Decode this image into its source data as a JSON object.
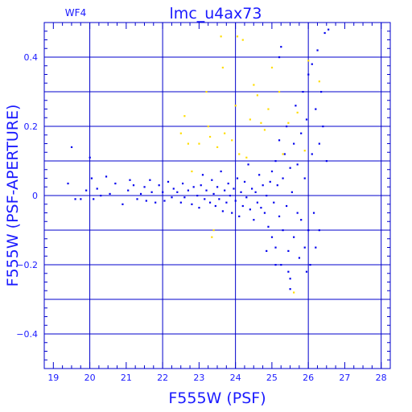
{
  "chart_data": {
    "type": "scatter",
    "title": "lmc_u4ax73",
    "subtitle": "WF4",
    "xlabel": "F555W (PSF)",
    "ylabel": "F555W (PSF-APERTURE)",
    "xlim": [
      18.75,
      28.25
    ],
    "ylim": [
      -0.5,
      0.5
    ],
    "x_ticks": [
      19,
      20,
      21,
      22,
      23,
      24,
      25,
      26,
      27,
      28
    ],
    "y_ticks": [
      -0.4,
      -0.2,
      0,
      0.2,
      0.4
    ],
    "y_tick_labels": [
      "−0.4",
      "−0.2",
      "0",
      "0.2",
      "0.4"
    ],
    "grid": true,
    "colors": {
      "axis": "#0000cc",
      "text": "#1a1aff",
      "series_blue": "#0000ee",
      "series_yellow": "#ffdd00"
    },
    "series": [
      {
        "color": "#0000ee",
        "points": [
          [
            19.4,
            0.035
          ],
          [
            19.5,
            0.14
          ],
          [
            19.6,
            -0.01
          ],
          [
            19.75,
            -0.01
          ],
          [
            19.9,
            0.015
          ],
          [
            20.0,
            0.11
          ],
          [
            20.05,
            0.05
          ],
          [
            20.1,
            -0.01
          ],
          [
            20.2,
            0.02
          ],
          [
            20.3,
            0.0
          ],
          [
            20.45,
            0.055
          ],
          [
            20.55,
            0.005
          ],
          [
            20.7,
            0.035
          ],
          [
            20.9,
            -0.025
          ],
          [
            21.05,
            0.015
          ],
          [
            21.1,
            0.045
          ],
          [
            21.2,
            0.03
          ],
          [
            21.3,
            -0.01
          ],
          [
            21.4,
            0.005
          ],
          [
            21.5,
            0.025
          ],
          [
            21.55,
            -0.015
          ],
          [
            21.65,
            0.045
          ],
          [
            21.7,
            0.01
          ],
          [
            21.8,
            -0.02
          ],
          [
            21.9,
            0.03
          ],
          [
            22.0,
            0.01
          ],
          [
            22.05,
            -0.015
          ],
          [
            22.15,
            0.04
          ],
          [
            22.25,
            -0.005
          ],
          [
            22.3,
            0.02
          ],
          [
            22.4,
            0.01
          ],
          [
            22.5,
            -0.02
          ],
          [
            22.55,
            0.035
          ],
          [
            22.6,
            -0.005
          ],
          [
            22.7,
            0.015
          ],
          [
            22.8,
            -0.025
          ],
          [
            22.85,
            0.025
          ],
          [
            22.95,
            0.0
          ],
          [
            23.0,
            -0.035
          ],
          [
            23.05,
            0.03
          ],
          [
            23.1,
            0.06
          ],
          [
            23.15,
            -0.01
          ],
          [
            23.2,
            0.015
          ],
          [
            23.3,
            -0.02
          ],
          [
            23.35,
            0.045
          ],
          [
            23.4,
            0.005
          ],
          [
            23.45,
            -0.03
          ],
          [
            23.5,
            0.025
          ],
          [
            23.55,
            -0.01
          ],
          [
            23.6,
            0.07
          ],
          [
            23.65,
            -0.045
          ],
          [
            23.7,
            0.015
          ],
          [
            23.75,
            -0.02
          ],
          [
            23.8,
            0.035
          ],
          [
            23.85,
            0.0
          ],
          [
            23.9,
            -0.05
          ],
          [
            23.95,
            0.02
          ],
          [
            24.0,
            -0.015
          ],
          [
            24.05,
            0.05
          ],
          [
            24.1,
            -0.06
          ],
          [
            24.15,
            0.01
          ],
          [
            24.2,
            -0.03
          ],
          [
            24.25,
            0.04
          ],
          [
            24.3,
            -0.005
          ],
          [
            24.35,
            0.09
          ],
          [
            24.4,
            -0.04
          ],
          [
            24.45,
            0.02
          ],
          [
            24.5,
            -0.07
          ],
          [
            24.55,
            0.01
          ],
          [
            24.6,
            -0.02
          ],
          [
            24.65,
            0.06
          ],
          [
            24.7,
            -0.035
          ],
          [
            24.75,
            0.03
          ],
          [
            24.8,
            -0.05
          ],
          [
            24.85,
            0.0
          ],
          [
            24.9,
            -0.09
          ],
          [
            24.95,
            0.04
          ],
          [
            25.0,
            -0.12
          ],
          [
            25.0,
            0.07
          ],
          [
            25.05,
            -0.02
          ],
          [
            25.1,
            0.1
          ],
          [
            25.1,
            -0.15
          ],
          [
            25.15,
            0.03
          ],
          [
            25.2,
            -0.06
          ],
          [
            25.2,
            0.16
          ],
          [
            25.25,
            -0.2
          ],
          [
            25.3,
            0.05
          ],
          [
            25.3,
            -0.1
          ],
          [
            25.35,
            0.12
          ],
          [
            25.4,
            -0.03
          ],
          [
            25.4,
            0.2
          ],
          [
            25.45,
            -0.16
          ],
          [
            25.5,
            0.08
          ],
          [
            25.5,
            -0.24
          ],
          [
            25.55,
            0.01
          ],
          [
            25.6,
            0.15
          ],
          [
            25.6,
            -0.12
          ],
          [
            25.65,
            0.26
          ],
          [
            25.7,
            -0.05
          ],
          [
            25.7,
            0.09
          ],
          [
            25.75,
            -0.18
          ],
          [
            25.8,
            0.18
          ],
          [
            25.8,
            -0.07
          ],
          [
            25.85,
            0.3
          ],
          [
            25.9,
            -0.15
          ],
          [
            25.9,
            0.05
          ],
          [
            25.95,
            0.22
          ],
          [
            26.0,
            -0.1
          ],
          [
            26.0,
            0.35
          ],
          [
            26.05,
            -0.2
          ],
          [
            26.1,
            0.12
          ],
          [
            26.1,
            0.38
          ],
          [
            26.15,
            -0.05
          ],
          [
            26.2,
            0.25
          ],
          [
            26.2,
            -0.15
          ],
          [
            26.25,
            0.42
          ],
          [
            26.3,
            0.15
          ],
          [
            26.3,
            -0.1
          ],
          [
            26.35,
            0.3
          ],
          [
            26.4,
            0.2
          ],
          [
            26.45,
            0.47
          ],
          [
            26.5,
            0.1
          ],
          [
            26.55,
            0.48
          ],
          [
            25.2,
            0.4
          ],
          [
            25.25,
            0.43
          ],
          [
            25.5,
            -0.27
          ],
          [
            25.45,
            -0.22
          ],
          [
            25.1,
            -0.2
          ],
          [
            25.95,
            -0.22
          ],
          [
            24.85,
            -0.16
          ]
        ]
      },
      {
        "color": "#ffdd00",
        "points": [
          [
            22.5,
            0.18
          ],
          [
            22.6,
            0.23
          ],
          [
            22.7,
            0.15
          ],
          [
            22.8,
            0.07
          ],
          [
            23.0,
            0.15
          ],
          [
            23.2,
            0.3
          ],
          [
            23.25,
            0.2
          ],
          [
            23.3,
            0.17
          ],
          [
            23.35,
            -0.12
          ],
          [
            23.4,
            -0.1
          ],
          [
            23.5,
            0.14
          ],
          [
            23.6,
            0.46
          ],
          [
            23.65,
            0.37
          ],
          [
            23.7,
            0.18
          ],
          [
            23.9,
            0.16
          ],
          [
            24.0,
            0.26
          ],
          [
            24.05,
            0.46
          ],
          [
            24.1,
            0.12
          ],
          [
            24.2,
            0.45
          ],
          [
            24.3,
            0.11
          ],
          [
            24.4,
            0.22
          ],
          [
            24.5,
            0.32
          ],
          [
            24.6,
            0.29
          ],
          [
            24.7,
            0.21
          ],
          [
            24.8,
            0.19
          ],
          [
            24.9,
            0.25
          ],
          [
            25.0,
            0.37
          ],
          [
            25.2,
            0.3
          ],
          [
            25.3,
            0.12
          ],
          [
            25.45,
            0.21
          ],
          [
            25.6,
            -0.28
          ],
          [
            25.7,
            0.24
          ],
          [
            25.9,
            0.13
          ],
          [
            26.0,
            0.39
          ],
          [
            26.3,
            0.33
          ]
        ]
      }
    ]
  }
}
